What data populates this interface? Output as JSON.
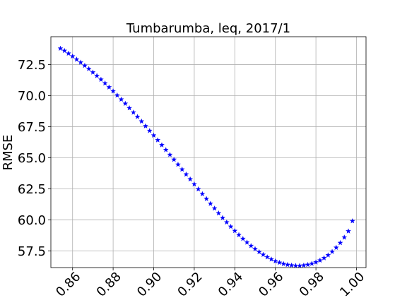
{
  "chart_data": {
    "type": "scatter",
    "title": "Tumbarumba, leq, 2017/1",
    "xlabel": "",
    "ylabel": "RMSE",
    "xlim": [
      0.8493,
      1.0047
    ],
    "ylim": [
      56.15,
      74.75
    ],
    "xticks": [
      "0.86",
      "0.88",
      "0.90",
      "0.92",
      "0.94",
      "0.96",
      "0.98",
      "1.00"
    ],
    "yticks": [
      "57.5",
      "60.0",
      "62.5",
      "65.0",
      "67.5",
      "70.0",
      "72.5"
    ],
    "grid": true,
    "marker": "star",
    "color": "#0000ff",
    "series": [
      {
        "x": [
          0.854,
          0.856,
          0.858,
          0.86,
          0.862,
          0.864,
          0.866,
          0.868,
          0.87,
          0.872,
          0.874,
          0.876,
          0.878,
          0.88,
          0.882,
          0.884,
          0.886,
          0.888,
          0.89,
          0.892,
          0.894,
          0.896,
          0.898,
          0.9,
          0.902,
          0.904,
          0.906,
          0.908,
          0.91,
          0.912,
          0.914,
          0.916,
          0.918,
          0.92,
          0.922,
          0.924,
          0.926,
          0.928,
          0.93,
          0.932,
          0.934,
          0.936,
          0.938,
          0.94,
          0.942,
          0.944,
          0.946,
          0.948,
          0.95,
          0.952,
          0.954,
          0.956,
          0.958,
          0.96,
          0.962,
          0.964,
          0.966,
          0.968,
          0.97,
          0.972,
          0.974,
          0.976,
          0.978,
          0.98,
          0.982,
          0.984,
          0.986,
          0.988,
          0.99,
          0.992,
          0.994,
          0.996,
          0.998
        ],
        "y": [
          73.8,
          73.62,
          73.4,
          73.17,
          72.92,
          72.68,
          72.42,
          72.16,
          71.88,
          71.6,
          71.3,
          71.0,
          70.68,
          70.36,
          70.03,
          69.7,
          69.36,
          69.0,
          68.65,
          68.3,
          67.93,
          67.55,
          67.17,
          66.8,
          66.42,
          66.02,
          65.63,
          65.24,
          64.85,
          64.45,
          64.06,
          63.66,
          63.27,
          62.87,
          62.47,
          62.08,
          61.69,
          61.3,
          60.92,
          60.53,
          60.16,
          59.8,
          59.45,
          59.11,
          58.78,
          58.47,
          58.18,
          57.9,
          57.65,
          57.41,
          57.19,
          56.99,
          56.82,
          56.67,
          56.55,
          56.45,
          56.38,
          56.33,
          56.3,
          56.3,
          56.33,
          56.38,
          56.47,
          56.58,
          56.73,
          56.92,
          57.15,
          57.43,
          57.76,
          58.14,
          58.58,
          59.08,
          59.9
        ]
      }
    ]
  }
}
